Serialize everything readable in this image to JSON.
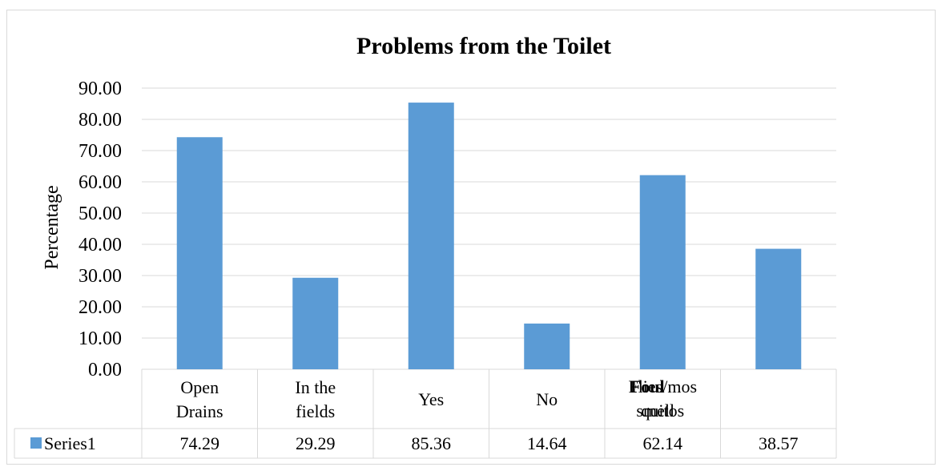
{
  "chart_data": {
    "type": "bar",
    "title": "Problems from the Toilet",
    "ylabel": "Percentage",
    "xlabel": "",
    "ylim": [
      0,
      90
    ],
    "ytick_step": 10,
    "ytick_labels": [
      "0.00",
      "10.00",
      "20.00",
      "30.00",
      "40.00",
      "50.00",
      "60.00",
      "70.00",
      "80.00",
      "90.00"
    ],
    "categories": [
      [
        "Open",
        "Drains"
      ],
      [
        "In the",
        "fields"
      ],
      [
        "Yes"
      ],
      [
        "No"
      ],
      [
        "Flies/mos",
        "quitos",
        "Foul",
        "smell"
      ],
      []
    ],
    "series": [
      {
        "name": "Series1",
        "values": [
          74.29,
          29.29,
          85.36,
          14.64,
          62.14,
          38.57
        ],
        "value_labels": [
          "74.29",
          "29.29",
          "85.36",
          "14.64",
          "62.14",
          "38.57"
        ]
      }
    ],
    "grid": true,
    "legend": "data-table",
    "colors": {
      "bar": "#5b9bd5",
      "grid": "#d9d9d9",
      "text": "#000000"
    }
  }
}
